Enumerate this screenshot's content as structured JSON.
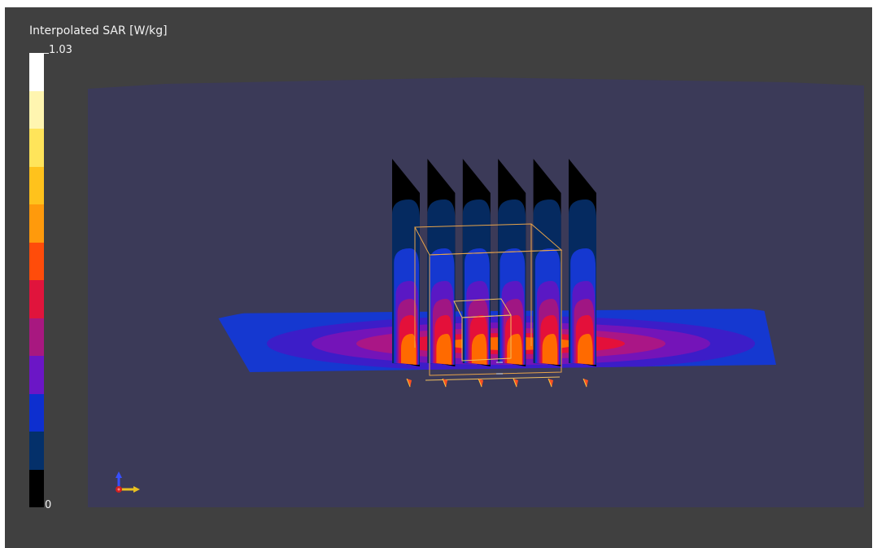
{
  "colorbar": {
    "title": "Interpolated SAR [W/kg]",
    "max_label": "1.03",
    "min_label": "0",
    "colors_top_to_bottom": [
      "#ffffff",
      "#fff5b0",
      "#ffe45a",
      "#ffc21c",
      "#ff9a0c",
      "#ff4c0a",
      "#e0143c",
      "#a81880",
      "#6b16c6",
      "#0d2fcf",
      "#04306a",
      "#000000"
    ]
  },
  "scene": {
    "background_color": "#3b3a58",
    "plane_colors_outer_to_inner": [
      "#1538d0",
      "#3c1dc8",
      "#7414b8",
      "#aa1686",
      "#e4103a",
      "#ff6a00"
    ],
    "slice_colors_top_to_bottom": [
      "#000000",
      "#052a60",
      "#1538d0",
      "#5a18c4",
      "#a01683",
      "#e4103a",
      "#ff6a00"
    ],
    "slice_count": 6,
    "axes_triad_icon": "xyz-axes-triad-icon"
  }
}
